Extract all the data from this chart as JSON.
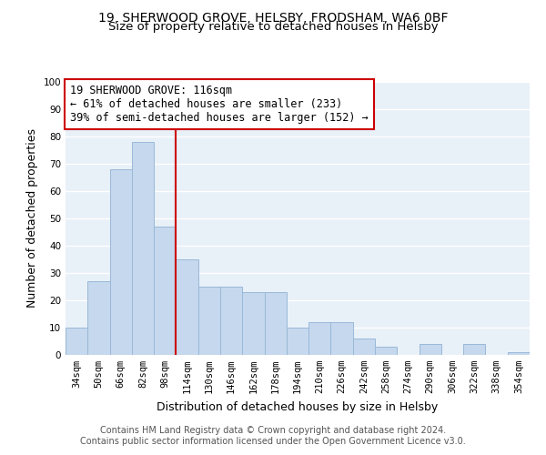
{
  "title1": "19, SHERWOOD GROVE, HELSBY, FRODSHAM, WA6 0BF",
  "title2": "Size of property relative to detached houses in Helsby",
  "xlabel": "Distribution of detached houses by size in Helsby",
  "ylabel": "Number of detached properties",
  "bar_labels": [
    "34sqm",
    "50sqm",
    "66sqm",
    "82sqm",
    "98sqm",
    "114sqm",
    "130sqm",
    "146sqm",
    "162sqm",
    "178sqm",
    "194sqm",
    "210sqm",
    "226sqm",
    "242sqm",
    "258sqm",
    "274sqm",
    "290sqm",
    "306sqm",
    "322sqm",
    "338sqm",
    "354sqm"
  ],
  "bar_values": [
    10,
    27,
    68,
    78,
    47,
    35,
    25,
    25,
    23,
    23,
    10,
    12,
    12,
    6,
    3,
    0,
    4,
    0,
    4,
    0,
    1
  ],
  "bar_color": "#c5d8ed",
  "bar_edge_color": "#9ab8d8",
  "vline_x": 5,
  "vline_color": "#cc0000",
  "annotation_title": "19 SHERWOOD GROVE: 116sqm",
  "annotation_line1": "← 61% of detached houses are smaller (233)",
  "annotation_line2": "39% of semi-detached houses are larger (152) →",
  "annotation_box_color": "#ffffff",
  "annotation_box_edge_color": "#cc0000",
  "ylim": [
    0,
    100
  ],
  "yticks": [
    0,
    10,
    20,
    30,
    40,
    50,
    60,
    70,
    80,
    90,
    100
  ],
  "footer1": "Contains HM Land Registry data © Crown copyright and database right 2024.",
  "footer2": "Contains public sector information licensed under the Open Government Licence v3.0.",
  "bg_color": "#e8f0f8",
  "grid_color": "#ffffff",
  "fig_bg_color": "#ffffff",
  "title_fontsize": 10,
  "subtitle_fontsize": 9.5,
  "axis_label_fontsize": 9,
  "tick_fontsize": 7.5,
  "annotation_fontsize": 8.5,
  "footer_fontsize": 7
}
